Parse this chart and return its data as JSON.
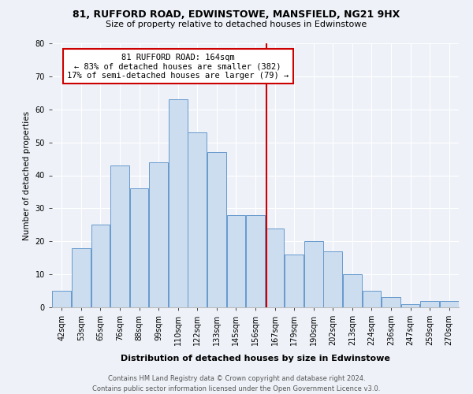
{
  "title1": "81, RUFFORD ROAD, EDWINSTOWE, MANSFIELD, NG21 9HX",
  "title2": "Size of property relative to detached houses in Edwinstowe",
  "xlabel": "Distribution of detached houses by size in Edwinstowe",
  "ylabel": "Number of detached properties",
  "bar_labels": [
    "42sqm",
    "53sqm",
    "65sqm",
    "76sqm",
    "88sqm",
    "99sqm",
    "110sqm",
    "122sqm",
    "133sqm",
    "145sqm",
    "156sqm",
    "167sqm",
    "179sqm",
    "190sqm",
    "202sqm",
    "213sqm",
    "224sqm",
    "236sqm",
    "247sqm",
    "259sqm",
    "270sqm"
  ],
  "bar_values": [
    5,
    18,
    25,
    43,
    36,
    44,
    63,
    53,
    47,
    28,
    28,
    24,
    16,
    20,
    17,
    10,
    5,
    3,
    1,
    2,
    2
  ],
  "bar_color": "#ccddf0",
  "bar_edge_color": "#6699cc",
  "vline_x_index": 10.55,
  "vline_color": "#cc0000",
  "annotation_text": "81 RUFFORD ROAD: 164sqm\n← 83% of detached houses are smaller (382)\n17% of semi-detached houses are larger (79) →",
  "annotation_box_color": "#ffffff",
  "annotation_box_edge_color": "#cc0000",
  "ylim": [
    0,
    80
  ],
  "yticks": [
    0,
    10,
    20,
    30,
    40,
    50,
    60,
    70,
    80
  ],
  "footer": "Contains HM Land Registry data © Crown copyright and database right 2024.\nContains public sector information licensed under the Open Government Licence v3.0.",
  "bg_color": "#eef2f8",
  "grid_color": "#ffffff",
  "title1_fontsize": 9,
  "title2_fontsize": 8,
  "xlabel_fontsize": 8,
  "ylabel_fontsize": 7.5,
  "tick_fontsize": 7,
  "footer_fontsize": 6,
  "annot_fontsize": 7.5
}
